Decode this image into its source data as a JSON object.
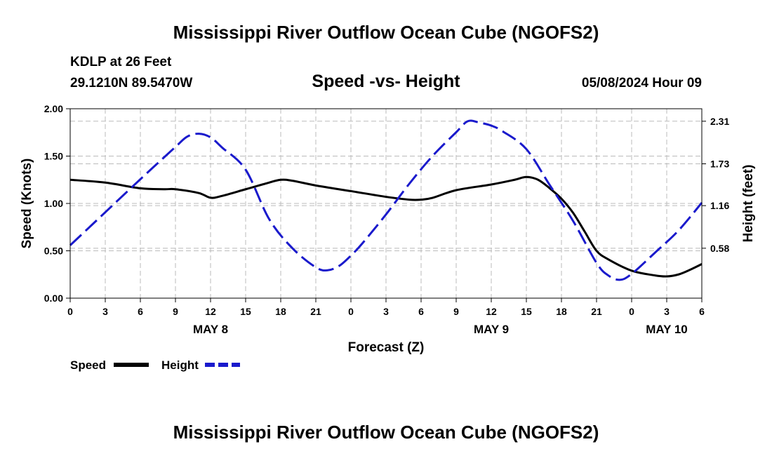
{
  "colors": {
    "speed": "#000000",
    "height": "#1a1acc",
    "grid": "#bbbbbb"
  },
  "chart_data": {
    "type": "line",
    "title": "Mississippi River Outflow Ocean Cube (NGOFS2)",
    "footer_title": "Mississippi River Outflow Ocean Cube (NGOFS2)",
    "station": "KDLP at 26 Feet",
    "location": "29.1210N  89.5470W",
    "subtitle": "Speed -vs- Height",
    "datetime": "05/08/2024 Hour 09",
    "xlabel": "Forecast (Z)",
    "ylabel_left": "Speed (Knots)",
    "ylabel_right": "Height (feet)",
    "x_unit": "forecast hour",
    "xlim": [
      0,
      54
    ],
    "ylim_left": [
      0,
      2.0
    ],
    "ylim_right": [
      -0.1,
      2.48
    ],
    "x_ticks": [
      {
        "x": 0,
        "label": "0"
      },
      {
        "x": 3,
        "label": "3"
      },
      {
        "x": 6,
        "label": "6"
      },
      {
        "x": 9,
        "label": "9"
      },
      {
        "x": 12,
        "label": "12"
      },
      {
        "x": 15,
        "label": "15"
      },
      {
        "x": 18,
        "label": "18"
      },
      {
        "x": 21,
        "label": "21"
      },
      {
        "x": 24,
        "label": "0"
      },
      {
        "x": 27,
        "label": "3"
      },
      {
        "x": 30,
        "label": "6"
      },
      {
        "x": 33,
        "label": "9"
      },
      {
        "x": 36,
        "label": "12"
      },
      {
        "x": 39,
        "label": "15"
      },
      {
        "x": 42,
        "label": "18"
      },
      {
        "x": 45,
        "label": "21"
      },
      {
        "x": 48,
        "label": "0"
      },
      {
        "x": 51,
        "label": "3"
      },
      {
        "x": 54,
        "label": "6"
      }
    ],
    "day_labels": [
      {
        "x": 12,
        "label": "MAY 8"
      },
      {
        "x": 36,
        "label": "MAY 9"
      },
      {
        "x": 51,
        "label": "MAY 10"
      }
    ],
    "y_ticks_left": [
      {
        "v": 0.0,
        "label": "0.00"
      },
      {
        "v": 0.5,
        "label": "0.50"
      },
      {
        "v": 1.0,
        "label": "1.00"
      },
      {
        "v": 1.5,
        "label": "1.50"
      },
      {
        "v": 2.0,
        "label": "2.00"
      }
    ],
    "y_ticks_right": [
      {
        "v": 0.58,
        "label": "0.58"
      },
      {
        "v": 1.16,
        "label": "1.16"
      },
      {
        "v": 1.73,
        "label": "1.73"
      },
      {
        "v": 2.31,
        "label": "2.31"
      }
    ],
    "legend": [
      {
        "name": "Speed",
        "style": "solid"
      },
      {
        "name": "Height",
        "style": "dashed"
      }
    ],
    "series": [
      {
        "name": "Speed",
        "axis": "left",
        "x": [
          0,
          3,
          6,
          8,
          9,
          11,
          12,
          13,
          15,
          17,
          18,
          19,
          21,
          24,
          27,
          29,
          30,
          31,
          33,
          36,
          38,
          39,
          40,
          41,
          42,
          43,
          44,
          45,
          46,
          48,
          50,
          51,
          52,
          53,
          54
        ],
        "values": [
          1.25,
          1.22,
          1.16,
          1.15,
          1.15,
          1.11,
          1.06,
          1.08,
          1.15,
          1.22,
          1.25,
          1.24,
          1.19,
          1.13,
          1.07,
          1.04,
          1.04,
          1.06,
          1.14,
          1.2,
          1.25,
          1.28,
          1.25,
          1.16,
          1.05,
          0.9,
          0.7,
          0.5,
          0.41,
          0.29,
          0.24,
          0.23,
          0.25,
          0.3,
          0.36
        ]
      },
      {
        "name": "Height",
        "axis": "right",
        "x": [
          0,
          3,
          6,
          9,
          10,
          11,
          12,
          13,
          15,
          17,
          19,
          21,
          22,
          23,
          24,
          25,
          27,
          29,
          31,
          33,
          34,
          35,
          36,
          37,
          39,
          41,
          43,
          45,
          46,
          47,
          48,
          50,
          52,
          54
        ],
        "values": [
          0.62,
          1.07,
          1.52,
          1.96,
          2.1,
          2.14,
          2.09,
          1.95,
          1.65,
          0.98,
          0.58,
          0.32,
          0.28,
          0.34,
          0.48,
          0.65,
          1.04,
          1.46,
          1.84,
          2.16,
          2.31,
          2.29,
          2.25,
          2.17,
          1.93,
          1.44,
          0.95,
          0.38,
          0.21,
          0.15,
          0.23,
          0.52,
          0.82,
          1.2
        ]
      }
    ]
  }
}
